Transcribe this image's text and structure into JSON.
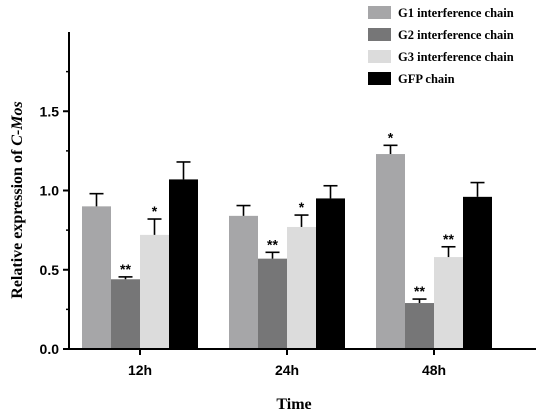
{
  "chart_data": {
    "type": "bar",
    "categories": [
      "12h",
      "24h",
      "48h"
    ],
    "xlabel": "Time",
    "ylabel_prefix": "Relative expression of ",
    "ylabel_gene": "C-Mos",
    "ylim": [
      0,
      2.0
    ],
    "yticks": [
      "0.0",
      "0.5",
      "1.0",
      "1.5"
    ],
    "yticks_values": [
      0,
      0.5,
      1.0,
      1.5
    ],
    "legend_position": "top-right",
    "series": [
      {
        "name": "G1 interference chain",
        "color": "#a6a6a8",
        "values": [
          0.9,
          0.84,
          1.23
        ],
        "errors": [
          0.08,
          0.065,
          0.055
        ],
        "sig": [
          "",
          "",
          "*"
        ]
      },
      {
        "name": "G2 interference chain",
        "color": "#767677",
        "values": [
          0.44,
          0.57,
          0.29
        ],
        "errors": [
          0.015,
          0.04,
          0.025
        ],
        "sig": [
          "**",
          "**",
          "**"
        ]
      },
      {
        "name": "G3 interference chain",
        "color": "#dcdcdc",
        "values": [
          0.72,
          0.77,
          0.58
        ],
        "errors": [
          0.1,
          0.075,
          0.065
        ],
        "sig": [
          "*",
          "*",
          "**"
        ]
      },
      {
        "name": "GFP chain",
        "color": "#000000",
        "values": [
          1.07,
          0.95,
          0.96
        ],
        "errors": [
          0.11,
          0.08,
          0.09
        ],
        "sig": [
          "",
          "",
          ""
        ]
      }
    ]
  }
}
